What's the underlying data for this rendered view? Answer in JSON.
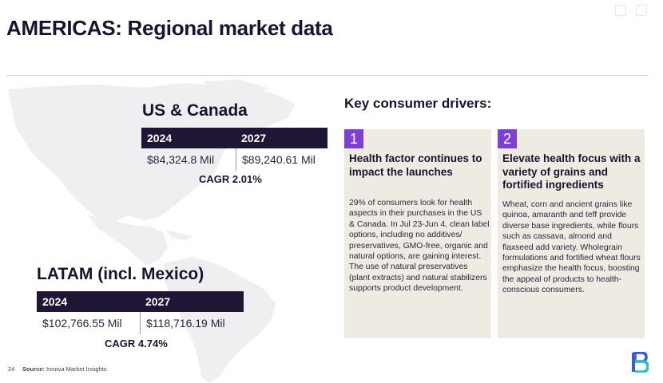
{
  "slide": {
    "title": "AMERICAS: Regional market data",
    "us_canada": {
      "title": "US & Canada",
      "headers": [
        "2024",
        "2027"
      ],
      "values": [
        "$84,324.8 Mil",
        "$89,240.61 Mil"
      ],
      "cagr": "CAGR 2.01%"
    },
    "latam": {
      "title": "LATAM (incl. Mexico)",
      "headers": [
        "2024",
        "2027"
      ],
      "values": [
        "$102,766.55 Mil",
        "$118,716.19 Mil"
      ],
      "cagr": "CAGR 4.74%"
    },
    "drivers": {
      "heading": "Key consumer drivers:",
      "cards": [
        {
          "number": "1",
          "title": "Health factor continues to impact the launches",
          "body": "29% of consumers look for health aspects in their purchases in the US & Canada. In Jul 23-Jun 4, clean label options, including no additives/ preservatives, GMO-free, organic and natural options, are gaining interest. The use of natural preservatives (plant extracts) and natural stabilizers supports product development."
        },
        {
          "number": "2",
          "title": "Elevate health focus with a variety of grains and fortified ingredients",
          "body": "Wheat, corn and ancient grains like quinoa, amaranth and teff provide diverse base ingredients, while flours such as cassava, almond and flaxseed add variety. Wholegrain formulations and fortified wheat flours emphasize the health focus, boosting the appeal of products to health-conscious consumers."
        }
      ]
    },
    "footer": {
      "page_number": "24",
      "source_label": "Source:",
      "source_text": "Innova Market Insights"
    }
  },
  "colors": {
    "table_header": "#1e1634",
    "accent_purple": "#7d3fd6",
    "card_background": "#eeebe2",
    "map_fill": "#efeff1",
    "logo_blue": "#3b5bdb"
  },
  "icons": [
    "americas-map",
    "company-logo"
  ]
}
